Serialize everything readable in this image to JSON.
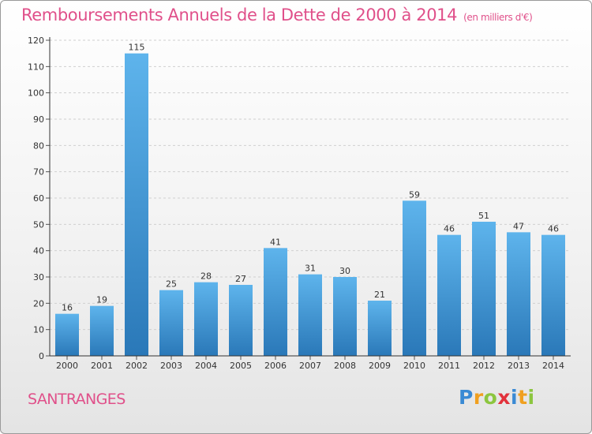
{
  "title": "Remboursements Annuels de la Dette de 2000 à 2014",
  "unit_note": "(en milliers d'€)",
  "commune": "SANTRANGES",
  "brand": {
    "letters": [
      {
        "char": "P",
        "color": "#3a8ad4"
      },
      {
        "char": "r",
        "color": "#f0a020"
      },
      {
        "char": "o",
        "color": "#8cc63f"
      },
      {
        "char": "x",
        "color": "#e2323c"
      },
      {
        "char": "i",
        "color": "#3a8ad4"
      },
      {
        "char": "t",
        "color": "#f0a020"
      },
      {
        "char": "i",
        "color": "#8cc63f"
      }
    ]
  },
  "colors": {
    "title": "#e0508a",
    "bar_top": "#5eb4ec",
    "bar_bottom": "#2a78b8"
  },
  "chart_data": {
    "type": "bar",
    "title": "Remboursements Annuels de la Dette de 2000 à 2014",
    "xlabel": "",
    "ylabel": "",
    "categories": [
      "2000",
      "2001",
      "2002",
      "2003",
      "2004",
      "2005",
      "2006",
      "2007",
      "2008",
      "2009",
      "2010",
      "2011",
      "2012",
      "2013",
      "2014"
    ],
    "values": [
      16,
      19,
      115,
      25,
      28,
      27,
      41,
      31,
      30,
      21,
      59,
      46,
      51,
      47,
      46
    ],
    "ylim": [
      0,
      120
    ],
    "yticks": [
      0,
      10,
      20,
      30,
      40,
      50,
      60,
      70,
      80,
      90,
      100,
      110,
      120
    ],
    "grid": true,
    "data_labels": true
  }
}
